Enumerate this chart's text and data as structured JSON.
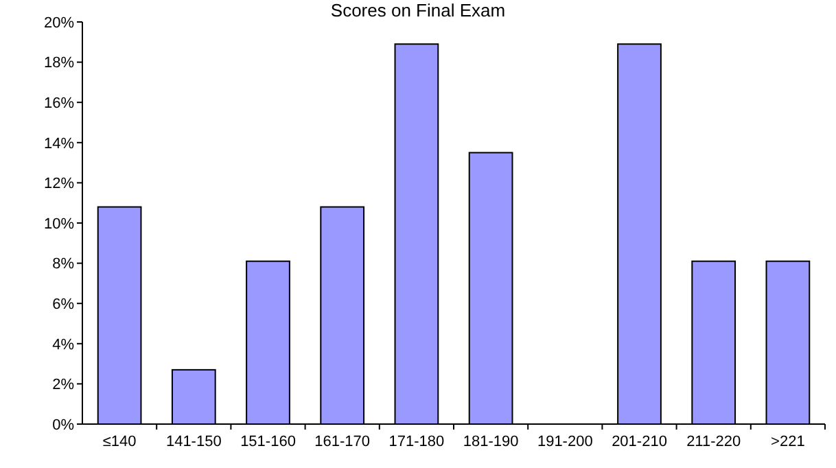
{
  "chart_data": {
    "type": "bar",
    "title": "Scores on Final Exam",
    "categories": [
      "≤140",
      "141-150",
      "151-160",
      "161-170",
      "171-180",
      "181-190",
      "191-200",
      "201-210",
      "211-220",
      ">221"
    ],
    "values": [
      10.8,
      2.7,
      8.1,
      10.8,
      18.9,
      13.5,
      0,
      18.9,
      8.1,
      8.1
    ],
    "color": "#9999ff",
    "ylim": [
      0,
      20
    ],
    "yticks": [
      {
        "value": 0,
        "label": "0%"
      },
      {
        "value": 2,
        "label": "2%"
      },
      {
        "value": 4,
        "label": "4%"
      },
      {
        "value": 6,
        "label": "6%"
      },
      {
        "value": 8,
        "label": "8%"
      },
      {
        "value": 10,
        "label": "10%"
      },
      {
        "value": 12,
        "label": "12%"
      },
      {
        "value": 14,
        "label": "14%"
      },
      {
        "value": 16,
        "label": "16%"
      },
      {
        "value": 18,
        "label": "18%"
      },
      {
        "value": 20,
        "label": "20%"
      }
    ],
    "grid": false
  }
}
